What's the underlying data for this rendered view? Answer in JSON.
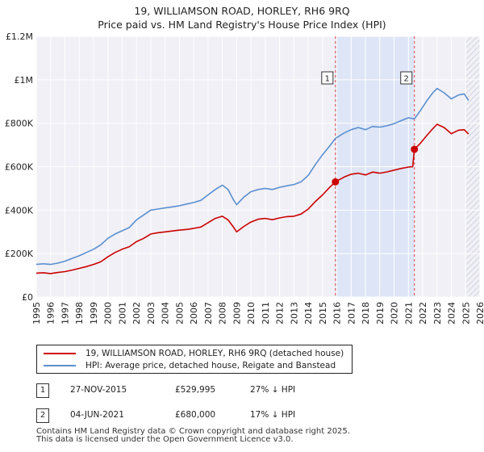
{
  "header": {
    "title": "19, WILLIAMSON ROAD, HORLEY, RH6 9RQ",
    "subtitle": "Price paid vs. HM Land Registry's House Price Index (HPI)"
  },
  "legend": {
    "property": "19, WILLIAMSON ROAD, HORLEY, RH6 9RQ (detached house)",
    "hpi": "HPI: Average price, detached house, Reigate and Banstead"
  },
  "transactions": [
    {
      "id": "1",
      "date": "27-NOV-2015",
      "price": "£529,995",
      "hpi": "27% ↓ HPI"
    },
    {
      "id": "2",
      "date": "04-JUN-2021",
      "price": "£680,000",
      "hpi": "17% ↓ HPI"
    }
  ],
  "footer": {
    "line1": "Contains HM Land Registry data © Crown copyright and database right 2025.",
    "line2": "This data is licensed under the Open Government Licence v3.0."
  },
  "chart_data": {
    "type": "line",
    "title": "19, WILLIAMSON ROAD, HORLEY, RH6 9RQ",
    "subtitle": "Price paid vs. HM Land Registry's House Price Index (HPI)",
    "xlabel": "",
    "ylabel": "",
    "xlim": [
      1995,
      2026
    ],
    "ylim": [
      0,
      1200000
    ],
    "x_ticks": [
      "1995",
      "1996",
      "1997",
      "1998",
      "1999",
      "2000",
      "2001",
      "2002",
      "2003",
      "2004",
      "2005",
      "2006",
      "2007",
      "2008",
      "2009",
      "2010",
      "2011",
      "2012",
      "2013",
      "2014",
      "2015",
      "2016",
      "2017",
      "2018",
      "2019",
      "2020",
      "2021",
      "2022",
      "2023",
      "2024",
      "2025",
      "2026"
    ],
    "y_ticks": [
      {
        "value": 0,
        "label": "£0"
      },
      {
        "value": 200000,
        "label": "£200K"
      },
      {
        "value": 400000,
        "label": "£400K"
      },
      {
        "value": 600000,
        "label": "£600K"
      },
      {
        "value": 800000,
        "label": "£800K"
      },
      {
        "value": 1000000,
        "label": "£1M"
      },
      {
        "value": 1200000,
        "label": "£1.2M"
      }
    ],
    "grid": true,
    "shaded_period": {
      "start": 2015.9,
      "end": 2021.42
    },
    "series": [
      {
        "name": "19, WILLIAMSON ROAD, HORLEY, RH6 9RQ (detached house)",
        "color": "#cc0000",
        "x": [
          1995.0,
          1995.5,
          1996.0,
          1996.5,
          1997.0,
          1997.5,
          1998.0,
          1998.5,
          1999.0,
          1999.5,
          2000.0,
          2000.5,
          2001.0,
          2001.5,
          2002.0,
          2002.5,
          2003.0,
          2003.5,
          2004.0,
          2004.5,
          2005.0,
          2005.5,
          2006.0,
          2006.5,
          2007.0,
          2007.5,
          2008.0,
          2008.4,
          2008.8,
          2009.0,
          2009.5,
          2010.0,
          2010.5,
          2011.0,
          2011.5,
          2012.0,
          2012.5,
          2013.0,
          2013.5,
          2014.0,
          2014.5,
          2015.0,
          2015.5,
          2015.9,
          2016.5,
          2017.0,
          2017.5,
          2018.0,
          2018.5,
          2019.0,
          2019.5,
          2020.0,
          2020.5,
          2021.0,
          2021.3,
          2021.42,
          2021.8,
          2022.3,
          2022.7,
          2023.0,
          2023.5,
          2024.0,
          2024.5,
          2024.9,
          2025.2
        ],
        "values": [
          110000,
          112000,
          108000,
          113000,
          117000,
          124000,
          132000,
          140000,
          150000,
          162000,
          185000,
          205000,
          220000,
          232000,
          255000,
          270000,
          290000,
          296000,
          300000,
          304000,
          308000,
          311000,
          316000,
          322000,
          342000,
          362000,
          372000,
          355000,
          320000,
          300000,
          325000,
          345000,
          358000,
          362000,
          356000,
          364000,
          370000,
          372000,
          382000,
          405000,
          440000,
          470000,
          505000,
          529995,
          552000,
          565000,
          570000,
          562000,
          575000,
          570000,
          576000,
          584000,
          592000,
          598000,
          600000,
          680000,
          705000,
          745000,
          775000,
          795000,
          780000,
          752000,
          768000,
          770000,
          750000
        ]
      },
      {
        "name": "HPI: Average price, detached house, Reigate and Banstead",
        "color": "#5b8fd0",
        "x": [
          1995.0,
          1995.5,
          1996.0,
          1996.5,
          1997.0,
          1997.5,
          1998.0,
          1998.5,
          1999.0,
          1999.5,
          2000.0,
          2000.5,
          2001.0,
          2001.5,
          2002.0,
          2002.5,
          2003.0,
          2003.5,
          2004.0,
          2004.5,
          2005.0,
          2005.5,
          2006.0,
          2006.5,
          2007.0,
          2007.5,
          2008.0,
          2008.4,
          2008.8,
          2009.0,
          2009.5,
          2010.0,
          2010.5,
          2011.0,
          2011.5,
          2012.0,
          2012.5,
          2013.0,
          2013.5,
          2014.0,
          2014.5,
          2015.0,
          2015.5,
          2015.9,
          2016.5,
          2017.0,
          2017.5,
          2018.0,
          2018.5,
          2019.0,
          2019.5,
          2020.0,
          2020.5,
          2021.0,
          2021.42,
          2021.8,
          2022.3,
          2022.7,
          2023.0,
          2023.5,
          2024.0,
          2024.5,
          2024.9,
          2025.2
        ],
        "values": [
          150000,
          153000,
          150000,
          156000,
          165000,
          178000,
          190000,
          205000,
          220000,
          240000,
          270000,
          290000,
          305000,
          320000,
          355000,
          378000,
          400000,
          405000,
          410000,
          415000,
          420000,
          428000,
          435000,
          445000,
          470000,
          495000,
          515000,
          495000,
          445000,
          425000,
          460000,
          485000,
          495000,
          500000,
          495000,
          505000,
          512000,
          518000,
          530000,
          560000,
          610000,
          655000,
          695000,
          730000,
          755000,
          770000,
          780000,
          770000,
          785000,
          782000,
          788000,
          798000,
          812000,
          825000,
          820000,
          855000,
          905000,
          940000,
          960000,
          940000,
          912000,
          930000,
          935000,
          905000
        ]
      }
    ],
    "annotations": [
      {
        "label": "1",
        "x": 2015.9,
        "value": 529995
      },
      {
        "label": "2",
        "x": 2021.42,
        "value": 680000
      }
    ]
  }
}
